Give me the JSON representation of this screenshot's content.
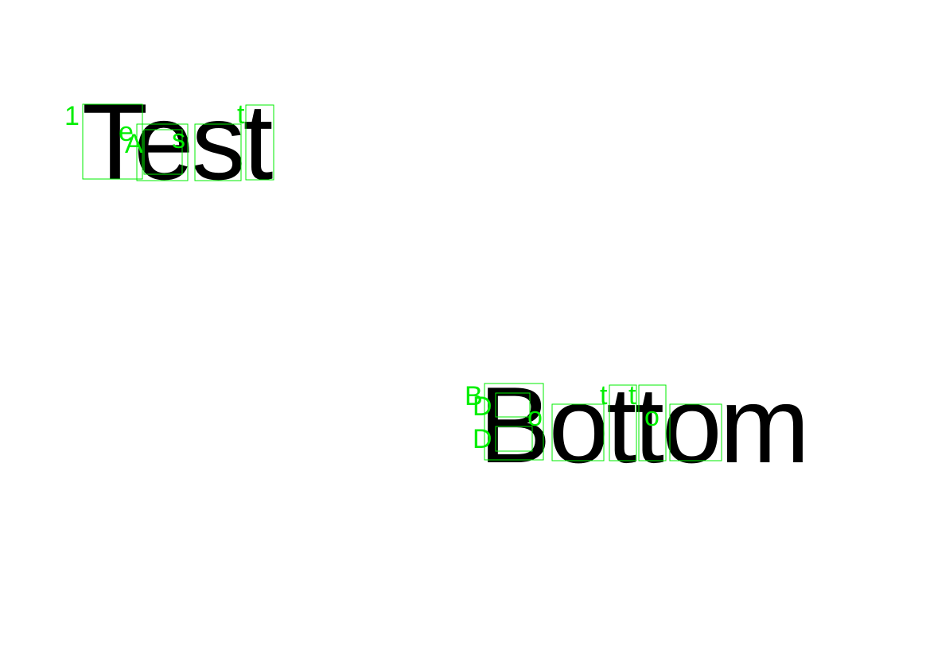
{
  "words": {
    "top": "Test",
    "bottom": "Bottom"
  },
  "annotation_color": "#00ee00",
  "text_color": "#000000",
  "annotations": [
    {
      "label": "1",
      "name": "box-test-T"
    },
    {
      "label": "e",
      "name": "box-test-e"
    },
    {
      "label": "A",
      "name": "box-test-e-inner"
    },
    {
      "label": "s",
      "name": "box-test-s"
    },
    {
      "label": "t",
      "name": "box-test-t"
    },
    {
      "label": "B",
      "name": "box-bottom-B"
    },
    {
      "label": "D",
      "name": "box-bottom-B-upper"
    },
    {
      "label": "D",
      "name": "box-bottom-B-lower"
    },
    {
      "label": "o",
      "name": "box-bottom-o"
    },
    {
      "label": "t",
      "name": "box-bottom-t1"
    },
    {
      "label": "t",
      "name": "box-bottom-t2"
    },
    {
      "label": "o",
      "name": "box-bottom-o2"
    }
  ]
}
